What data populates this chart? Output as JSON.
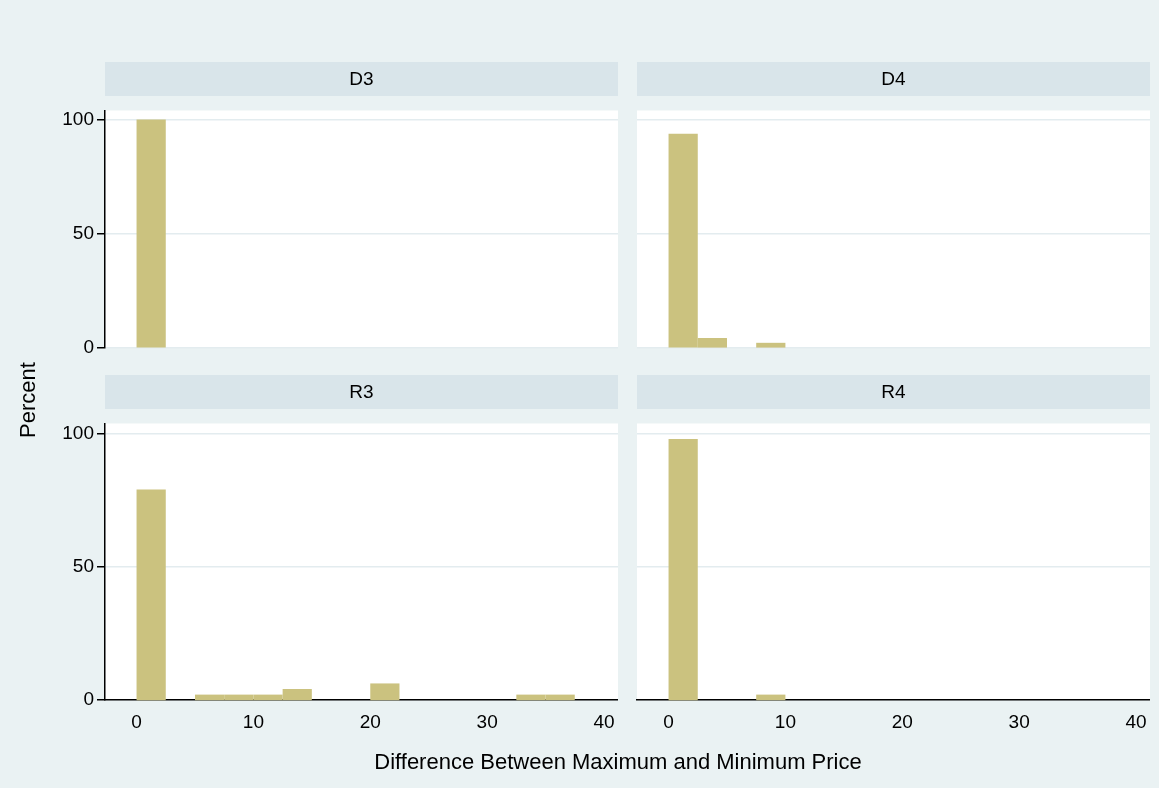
{
  "chart_data": [
    {
      "type": "histogram",
      "title": "D3",
      "ylabel": "Percent",
      "color": "#cbc27f",
      "bins": [
        0,
        2.5
      ],
      "values": [
        100
      ],
      "xlim": [
        -2.7,
        41.2
      ],
      "ylim": [
        0,
        104
      ],
      "xticks": [
        0,
        10,
        20,
        30,
        40
      ],
      "yticks": [
        0,
        50,
        100
      ],
      "grid": "y",
      "tick_labels": "y"
    },
    {
      "type": "histogram",
      "title": "D4",
      "color": "#cbc27f",
      "bins": [
        0,
        2.5,
        5,
        7.5,
        10
      ],
      "values": [
        93.8,
        4.2,
        0,
        2.1
      ],
      "xlim": [
        -2.7,
        41.2
      ],
      "ylim": [
        0,
        104
      ],
      "xticks": [
        0,
        10,
        20,
        30,
        40
      ],
      "yticks": [
        0,
        50,
        100
      ],
      "grid": "y",
      "tick_labels": false
    },
    {
      "type": "histogram",
      "title": "R3",
      "xlabel": "Difference Between Maximum and Minimum Price",
      "color": "#cbc27f",
      "bins": [
        0,
        2.5,
        5,
        7.5,
        10,
        12.5,
        15,
        17.5,
        20,
        22.5,
        25,
        27.5,
        30,
        32.5,
        35,
        37.5
      ],
      "values": [
        79.2,
        0,
        2.1,
        2.1,
        2.1,
        4.2,
        0,
        0,
        6.3,
        0,
        0,
        0,
        0,
        2.1,
        2.1
      ],
      "xlim": [
        -2.7,
        41.2
      ],
      "ylim": [
        0,
        104
      ],
      "xticks": [
        0,
        10,
        20,
        30,
        40
      ],
      "yticks": [
        0,
        50,
        100
      ],
      "grid": "y"
    },
    {
      "type": "histogram",
      "title": "R4",
      "color": "#cbc27f",
      "bins": [
        0,
        2.5,
        5,
        7.5,
        10
      ],
      "values": [
        98.1,
        0,
        0,
        2.1
      ],
      "xlim": [
        -2.7,
        41.2
      ],
      "ylim": [
        0,
        104
      ],
      "xticks": [
        0,
        10,
        20,
        30,
        40
      ],
      "yticks": [
        0,
        50,
        100
      ],
      "grid": "y",
      "tick_labels": "x"
    }
  ]
}
